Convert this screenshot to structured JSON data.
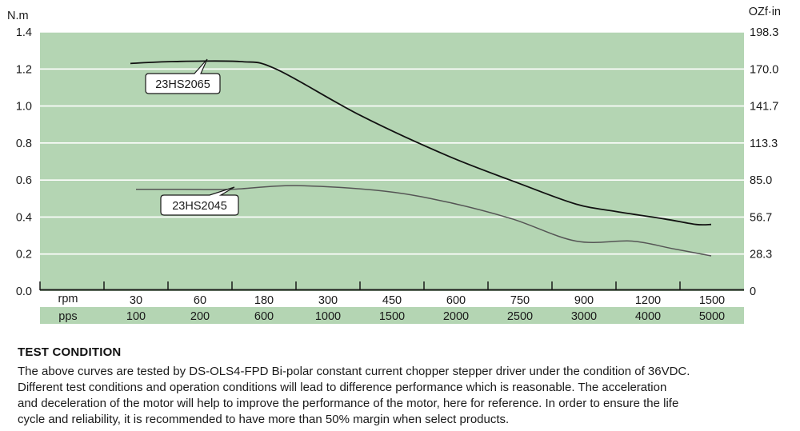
{
  "chart_data": {
    "type": "line",
    "left_unit_label": "N.m",
    "right_unit_label": "OZf·in",
    "ylim": [
      0,
      1.4
    ],
    "left_ticks": [
      "0.0",
      "0.2",
      "0.4",
      "0.6",
      "0.8",
      "1.0",
      "1.2",
      "1.4"
    ],
    "right_ticks": [
      "0",
      "28.3",
      "56.7",
      "85.0",
      "113.3",
      "141.7",
      "170.0",
      "198.3"
    ],
    "rpm_row_label": "rpm",
    "pps_row_label": "pps",
    "rpm": [
      "30",
      "60",
      "180",
      "300",
      "450",
      "600",
      "750",
      "900",
      "1200",
      "1500"
    ],
    "pps": [
      "100",
      "200",
      "600",
      "1000",
      "1500",
      "2000",
      "2500",
      "3000",
      "4000",
      "5000"
    ],
    "grid": true,
    "series": [
      {
        "name": "23HS2065",
        "values": [
          1.23,
          1.24,
          1.24,
          1.2,
          0.95,
          0.73,
          0.58,
          0.47,
          0.43,
          0.39,
          0.36,
          0.36
        ]
      },
      {
        "name": "23HS2045",
        "values": [
          0.55,
          0.55,
          0.55,
          0.57,
          0.54,
          0.48,
          0.39,
          0.27,
          0.27,
          0.23,
          0.19
        ]
      }
    ]
  },
  "test_condition": {
    "title": "TEST CONDITION",
    "line1": "The above curves are tested by DS-OLS4-FPD Bi-polar constant current chopper stepper driver under the condition of 36VDC.",
    "line2": "Different test conditions and operation conditions will lead to difference performance which is reasonable. The acceleration",
    "line3": "and deceleration of the motor will help to improve the performance of the motor, here for reference. In order to ensure the life",
    "line4": "cycle and reliability, it is recommended to have more than 50% margin when select products."
  },
  "colors": {
    "plot_bg": "#b4d5b3",
    "row_bg": "#b4d5b3",
    "grid": "#ffffff",
    "curve_dark": "#111111",
    "curve_light": "#555555"
  }
}
